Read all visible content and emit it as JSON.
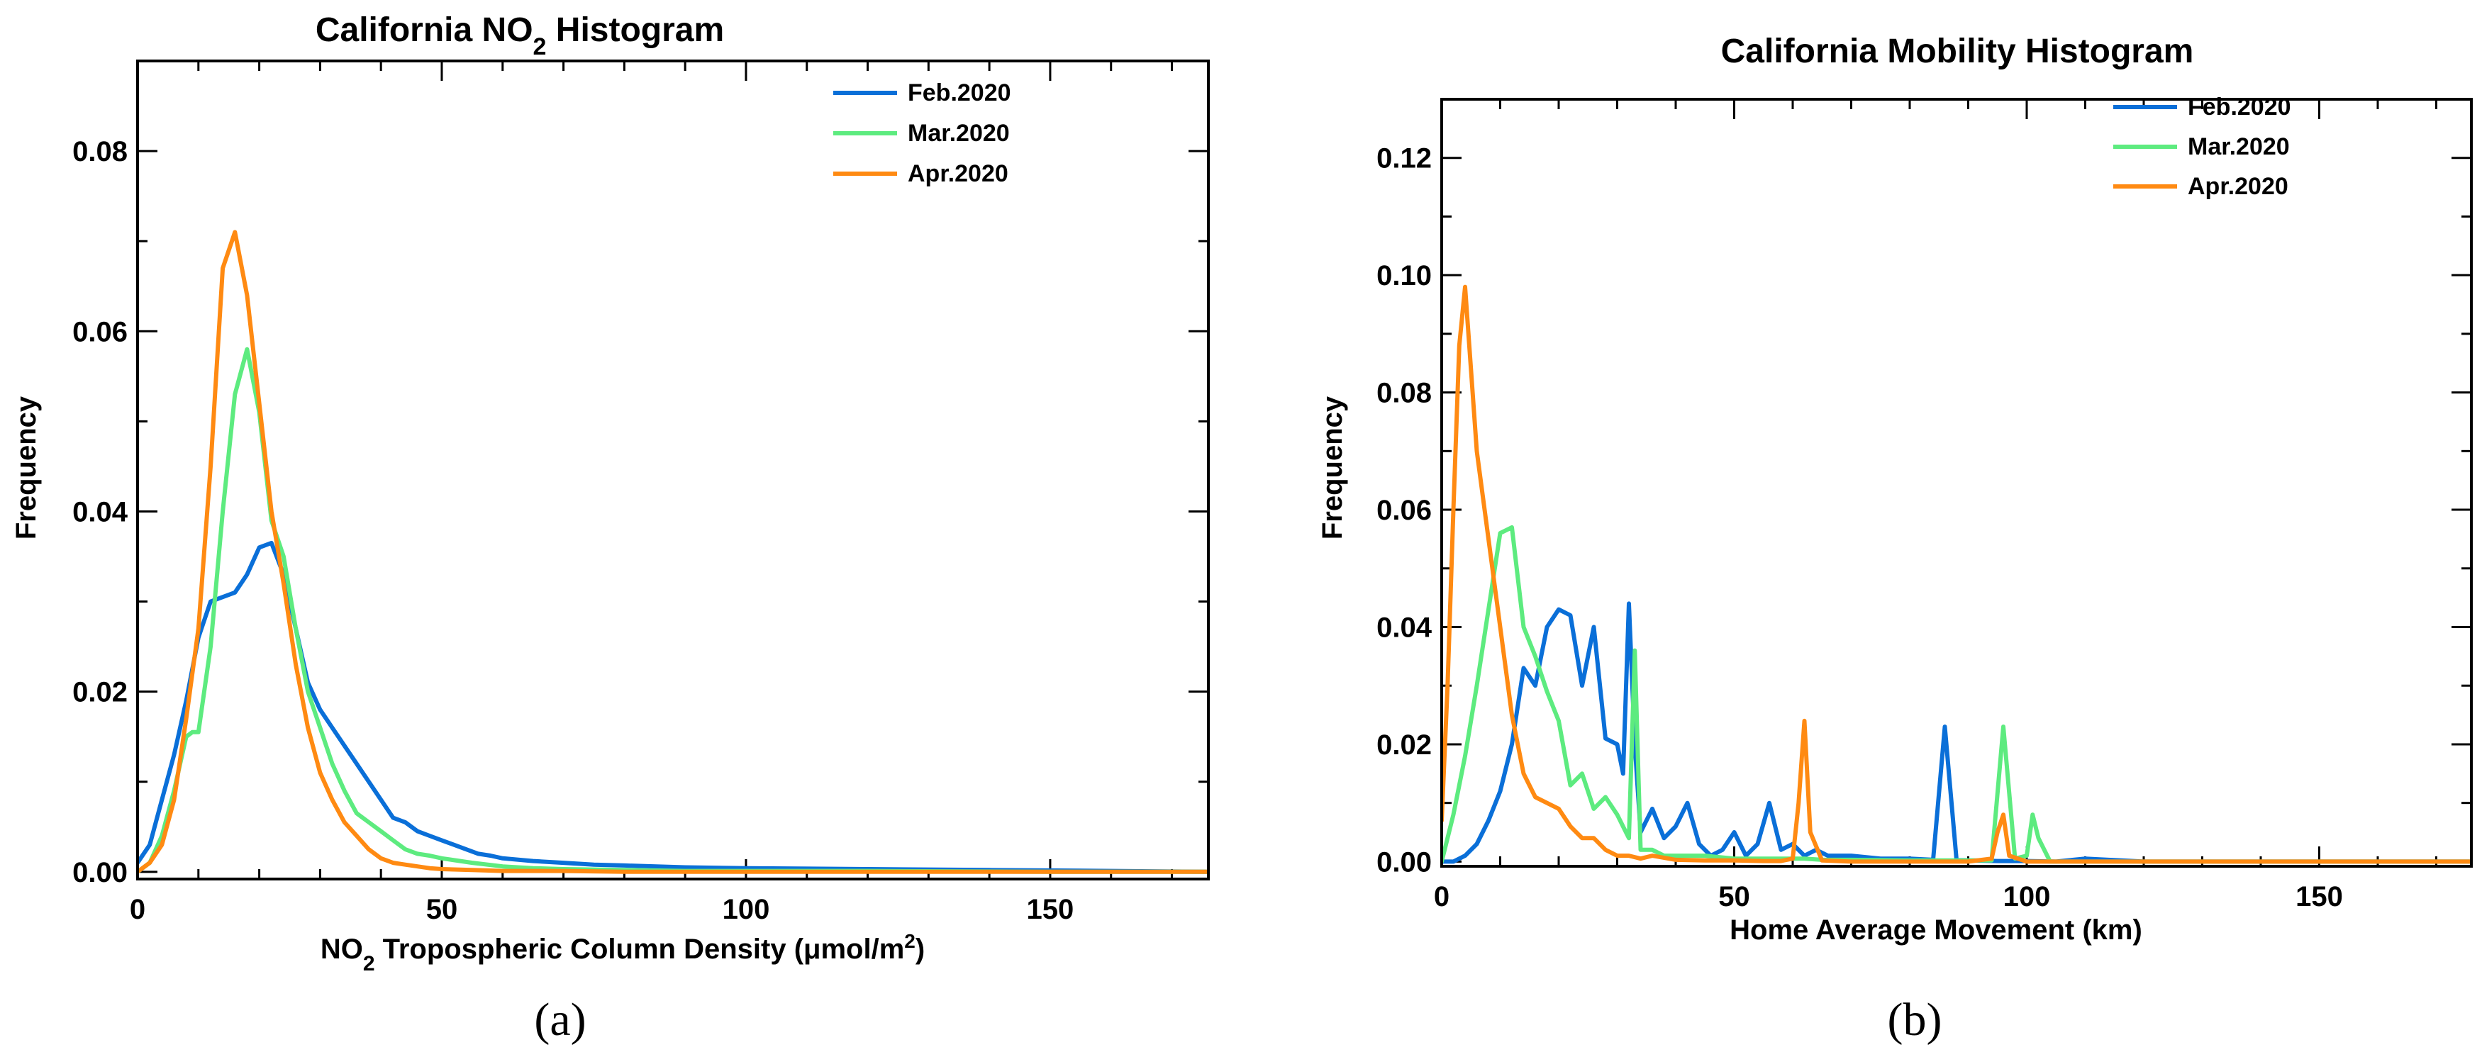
{
  "chart_data": [
    {
      "id": "a",
      "type": "line",
      "title_main": "California NO",
      "title_sub": "2",
      "title_rest": " Histogram",
      "xlabel_main": "NO",
      "xlabel_sub": "2",
      "xlabel_mid": " Tropospheric Column Density (μmol/m",
      "xlabel_sup": "2",
      "xlabel_end": ")",
      "ylabel": "Frequency",
      "panel_label": "(a)",
      "xlim": [
        0,
        176
      ],
      "ylim": [
        -0.0008,
        0.09
      ],
      "xticks": [
        0,
        50,
        100,
        150
      ],
      "xtick_labels": [
        "0",
        "50",
        "100",
        "150"
      ],
      "yticks": [
        0.0,
        0.02,
        0.04,
        0.06,
        0.08
      ],
      "ytick_labels": [
        "0.00",
        "0.02",
        "0.04",
        "0.06",
        "0.08"
      ],
      "legend_position": "top-right",
      "series": [
        {
          "name": "Feb.2020",
          "color": "#0a6fd8",
          "x": [
            0,
            2,
            4,
            6,
            8,
            10,
            12,
            14,
            16,
            18,
            20,
            22,
            24,
            26,
            28,
            30,
            32,
            34,
            36,
            38,
            40,
            42,
            44,
            46,
            48,
            50,
            52,
            54,
            56,
            58,
            60,
            65,
            70,
            75,
            80,
            90,
            100,
            120,
            140,
            160,
            176
          ],
          "y": [
            0.001,
            0.003,
            0.008,
            0.013,
            0.019,
            0.026,
            0.03,
            0.0305,
            0.031,
            0.033,
            0.036,
            0.0365,
            0.033,
            0.027,
            0.021,
            0.018,
            0.016,
            0.014,
            0.012,
            0.01,
            0.008,
            0.006,
            0.0055,
            0.0045,
            0.004,
            0.0035,
            0.003,
            0.0025,
            0.002,
            0.0018,
            0.0015,
            0.0012,
            0.001,
            0.0008,
            0.0007,
            0.0005,
            0.0004,
            0.0003,
            0.0002,
            0.0001,
            0.0
          ]
        },
        {
          "name": "Mar.2020",
          "color": "#5deb7f",
          "x": [
            0,
            2,
            4,
            6,
            8,
            9,
            10,
            12,
            14,
            16,
            18,
            20,
            22,
            24,
            26,
            28,
            30,
            32,
            34,
            36,
            38,
            40,
            42,
            44,
            46,
            48,
            50,
            55,
            60,
            65,
            70,
            80,
            90,
            100,
            120,
            150,
            176
          ],
          "y": [
            0.0,
            0.001,
            0.004,
            0.009,
            0.015,
            0.0155,
            0.0155,
            0.025,
            0.04,
            0.053,
            0.058,
            0.051,
            0.039,
            0.035,
            0.027,
            0.02,
            0.016,
            0.012,
            0.009,
            0.0065,
            0.0055,
            0.0045,
            0.0035,
            0.0025,
            0.002,
            0.0018,
            0.0015,
            0.001,
            0.0006,
            0.0004,
            0.0003,
            0.0002,
            0.0001,
            0.0001,
            0.0001,
            0.0,
            0.0
          ]
        },
        {
          "name": "Apr.2020",
          "color": "#ff8a12",
          "x": [
            0,
            2,
            4,
            6,
            8,
            10,
            12,
            14,
            16,
            18,
            20,
            22,
            24,
            26,
            28,
            30,
            32,
            34,
            36,
            38,
            40,
            42,
            44,
            46,
            48,
            50,
            55,
            60,
            70,
            80,
            100,
            176
          ],
          "y": [
            0.0,
            0.001,
            0.003,
            0.008,
            0.017,
            0.027,
            0.045,
            0.067,
            0.071,
            0.064,
            0.052,
            0.04,
            0.032,
            0.023,
            0.016,
            0.011,
            0.008,
            0.0055,
            0.004,
            0.0025,
            0.0015,
            0.001,
            0.0008,
            0.0006,
            0.0004,
            0.0003,
            0.0002,
            0.0001,
            0.0001,
            0.0,
            0.0,
            0.0
          ]
        }
      ]
    },
    {
      "id": "b",
      "type": "line",
      "title_main": "California Mobility Histogram",
      "xlabel_main": "Home Average Movement (km)",
      "ylabel": "Frequency",
      "panel_label": "(b)",
      "xlim": [
        0,
        176
      ],
      "ylim": [
        -0.0008,
        0.13
      ],
      "xticks": [
        0,
        50,
        100,
        150
      ],
      "xtick_labels": [
        "0",
        "50",
        "100",
        "150"
      ],
      "yticks": [
        0.0,
        0.02,
        0.04,
        0.06,
        0.08,
        0.1,
        0.12
      ],
      "ytick_labels": [
        "0.00",
        "0.02",
        "0.04",
        "0.06",
        "0.08",
        "0.10",
        "0.12"
      ],
      "legend_position": "top-right",
      "series": [
        {
          "name": "Feb.2020",
          "color": "#0a6fd8",
          "x": [
            0,
            2,
            4,
            6,
            8,
            10,
            12,
            14,
            16,
            18,
            20,
            22,
            24,
            26,
            28,
            30,
            31,
            32,
            33,
            34,
            36,
            38,
            40,
            42,
            44,
            46,
            48,
            50,
            52,
            54,
            56,
            58,
            60,
            62,
            64,
            66,
            70,
            75,
            80,
            84,
            86,
            88,
            90,
            95,
            100,
            105,
            110,
            120,
            176
          ],
          "y": [
            0.0,
            0.0,
            0.001,
            0.003,
            0.007,
            0.012,
            0.02,
            0.033,
            0.03,
            0.04,
            0.043,
            0.042,
            0.03,
            0.04,
            0.021,
            0.02,
            0.015,
            0.044,
            0.02,
            0.005,
            0.009,
            0.004,
            0.006,
            0.01,
            0.003,
            0.001,
            0.002,
            0.005,
            0.001,
            0.003,
            0.01,
            0.002,
            0.003,
            0.001,
            0.002,
            0.001,
            0.001,
            0.0005,
            0.0005,
            0.0003,
            0.023,
            0.0003,
            0.0002,
            0.0001,
            0.0001,
            0.0,
            0.0005,
            0.0,
            0.0
          ]
        },
        {
          "name": "Mar.2020",
          "color": "#5deb7f",
          "x": [
            0,
            2,
            4,
            6,
            8,
            10,
            12,
            14,
            16,
            18,
            20,
            22,
            24,
            26,
            28,
            30,
            32,
            33,
            34,
            36,
            38,
            40,
            45,
            50,
            55,
            60,
            62,
            65,
            70,
            80,
            90,
            94,
            96,
            98,
            100,
            101,
            102,
            104,
            110,
            176
          ],
          "y": [
            0.0,
            0.008,
            0.018,
            0.03,
            0.043,
            0.056,
            0.057,
            0.04,
            0.035,
            0.029,
            0.024,
            0.013,
            0.015,
            0.009,
            0.011,
            0.008,
            0.004,
            0.036,
            0.002,
            0.002,
            0.001,
            0.001,
            0.001,
            0.0005,
            0.0005,
            0.0005,
            0.0005,
            0.0003,
            0.0003,
            0.0002,
            0.0002,
            0.0002,
            0.023,
            0.0005,
            0.001,
            0.008,
            0.004,
            0.0,
            0.0,
            0.0
          ]
        },
        {
          "name": "Apr.2020",
          "color": "#ff8a12",
          "x": [
            0,
            1,
            2,
            3,
            4,
            6,
            8,
            10,
            12,
            14,
            16,
            18,
            20,
            22,
            24,
            26,
            28,
            30,
            32,
            34,
            36,
            40,
            45,
            50,
            55,
            58,
            60,
            61,
            62,
            63,
            65,
            70,
            80,
            90,
            94,
            95,
            96,
            97,
            100,
            176
          ],
          "y": [
            0.007,
            0.03,
            0.06,
            0.088,
            0.098,
            0.07,
            0.055,
            0.04,
            0.025,
            0.015,
            0.011,
            0.01,
            0.009,
            0.006,
            0.004,
            0.004,
            0.002,
            0.001,
            0.001,
            0.0005,
            0.001,
            0.0003,
            0.0002,
            0.0002,
            0.0001,
            0.0001,
            0.0005,
            0.01,
            0.024,
            0.005,
            0.0002,
            0.0,
            0.0,
            0.0,
            0.0005,
            0.005,
            0.008,
            0.001,
            0.0,
            0.0
          ]
        }
      ]
    }
  ]
}
